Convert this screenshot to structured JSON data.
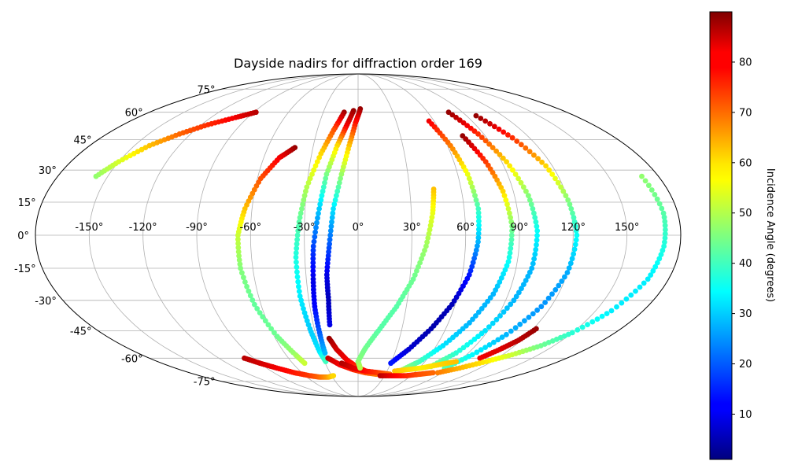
{
  "chart_data": {
    "type": "scatter",
    "projection": "mollweide",
    "title": "Dayside nadirs for diffraction order 169",
    "x_ticks": [
      "-150°",
      "-120°",
      "-90°",
      "-60°",
      "-30°",
      "0°",
      "30°",
      "60°",
      "90°",
      "120°",
      "150°"
    ],
    "y_ticks": [
      "75°",
      "60°",
      "45°",
      "30°",
      "15°",
      "0°",
      "-15°",
      "-30°",
      "-45°",
      "-60°",
      "-75°"
    ],
    "grid": true,
    "colormap": "jet",
    "colorbar": {
      "label": "Incidence Angle (degrees)",
      "range": [
        1,
        90
      ],
      "ticks": [
        "10",
        "20",
        "30",
        "40",
        "50",
        "60",
        "70",
        "80"
      ],
      "placement": "right"
    },
    "series": [
      {
        "points": [
          [
            -157,
            27,
            47
          ],
          [
            -150,
            34,
            53
          ],
          [
            -140,
            42,
            62
          ],
          [
            -128,
            48,
            70
          ],
          [
            -115,
            53,
            75
          ],
          [
            -100,
            57,
            80
          ],
          [
            -88,
            60,
            85
          ]
        ]
      },
      {
        "points": [
          [
            -98,
            -60,
            85
          ],
          [
            -90,
            -63,
            83
          ],
          [
            -80,
            -66,
            80
          ],
          [
            -68,
            -69,
            77
          ],
          [
            -55,
            -71,
            74
          ],
          [
            -45,
            -72,
            70
          ],
          [
            -35,
            -72,
            65
          ],
          [
            -28,
            -71,
            60
          ]
        ]
      },
      {
        "points": [
          [
            -42,
            41,
            88
          ],
          [
            -50,
            36,
            80
          ],
          [
            -58,
            26,
            72
          ],
          [
            -64,
            12,
            62
          ],
          [
            -67,
            0,
            52
          ],
          [
            -67,
            -15,
            46
          ],
          [
            -64,
            -32,
            43
          ],
          [
            -58,
            -48,
            44
          ],
          [
            -52,
            -58,
            48
          ],
          [
            -49,
            -63,
            52
          ]
        ]
      },
      {
        "points": [
          [
            -12,
            60,
            87
          ],
          [
            -18,
            50,
            72
          ],
          [
            -24,
            38,
            60
          ],
          [
            -30,
            22,
            50
          ],
          [
            -33,
            6,
            42
          ],
          [
            -35,
            -10,
            37
          ],
          [
            -35,
            -28,
            33
          ],
          [
            -33,
            -44,
            30
          ],
          [
            -31,
            -56,
            32
          ],
          [
            -29,
            -62,
            40
          ]
        ]
      },
      {
        "points": [
          [
            -4,
            61,
            88
          ],
          [
            -9,
            52,
            80
          ],
          [
            -14,
            42,
            60
          ],
          [
            -19,
            28,
            45
          ],
          [
            -22,
            12,
            30
          ],
          [
            -25,
            -5,
            18
          ],
          [
            -26,
            -20,
            10
          ],
          [
            -27,
            -33,
            12
          ],
          [
            -27,
            -46,
            20
          ],
          [
            -27,
            -57,
            28
          ]
        ]
      },
      {
        "points": [
          [
            2,
            62,
            88
          ],
          [
            -2,
            54,
            78
          ],
          [
            -6,
            42,
            62
          ],
          [
            -10,
            28,
            48
          ],
          [
            -14,
            12,
            32
          ],
          [
            -16,
            -4,
            20
          ],
          [
            -18,
            -18,
            10
          ],
          [
            -18,
            -30,
            6
          ],
          [
            -19,
            -42,
            10
          ]
        ]
      },
      {
        "points": [
          [
            -21,
            -49,
            88
          ],
          [
            -17,
            -55,
            83
          ],
          [
            -10,
            -61,
            80
          ],
          [
            -2,
            -65,
            76
          ],
          [
            8,
            -68,
            74
          ]
        ]
      },
      {
        "points": [
          [
            -26,
            -60,
            84
          ],
          [
            -17,
            -64,
            80
          ],
          [
            -5,
            -67,
            76
          ],
          [
            8,
            -69,
            72
          ],
          [
            20,
            -70,
            68
          ]
        ]
      },
      {
        "points": [
          [
            -15,
            -63,
            86
          ],
          [
            -5,
            -66,
            82
          ],
          [
            8,
            -68,
            78
          ],
          [
            22,
            -69,
            74
          ],
          [
            35,
            -70,
            70
          ]
        ]
      },
      {
        "points": [
          [
            44,
            21,
            62
          ],
          [
            42,
            10,
            55
          ],
          [
            38,
            -5,
            48
          ],
          [
            32,
            -20,
            44
          ],
          [
            24,
            -33,
            42
          ],
          [
            15,
            -44,
            42
          ],
          [
            6,
            -54,
            44
          ],
          [
            0,
            -62,
            46
          ],
          [
            2,
            -66,
            50
          ]
        ]
      },
      {
        "points": [
          [
            56,
            55,
            80
          ],
          [
            62,
            42,
            68
          ],
          [
            66,
            28,
            55
          ],
          [
            68,
            12,
            40
          ],
          [
            67,
            -3,
            28
          ],
          [
            64,
            -18,
            14
          ],
          [
            58,
            -32,
            6
          ],
          [
            50,
            -44,
            5
          ],
          [
            40,
            -55,
            8
          ],
          [
            30,
            -63,
            14
          ]
        ]
      },
      {
        "points": [
          [
            74,
            47,
            88
          ],
          [
            80,
            34,
            74
          ],
          [
            84,
            20,
            60
          ],
          [
            86,
            4,
            45
          ],
          [
            85,
            -12,
            35
          ],
          [
            81,
            -27,
            28
          ],
          [
            74,
            -41,
            28
          ],
          [
            65,
            -53,
            32
          ],
          [
            55,
            -62,
            40
          ],
          [
            45,
            -67,
            47
          ]
        ]
      },
      {
        "points": [
          [
            78,
            60,
            88
          ],
          [
            86,
            48,
            75
          ],
          [
            93,
            34,
            60
          ],
          [
            98,
            18,
            46
          ],
          [
            100,
            2,
            35
          ],
          [
            99,
            -15,
            28
          ],
          [
            95,
            -30,
            28
          ],
          [
            88,
            -45,
            32
          ],
          [
            80,
            -57,
            38
          ],
          [
            70,
            -65,
            45
          ]
        ]
      },
      {
        "points": [
          [
            98,
            58,
            88
          ],
          [
            108,
            46,
            75
          ],
          [
            116,
            32,
            60
          ],
          [
            120,
            16,
            46
          ],
          [
            122,
            0,
            35
          ],
          [
            120,
            -17,
            27
          ],
          [
            114,
            -33,
            25
          ],
          [
            105,
            -47,
            28
          ],
          [
            95,
            -58,
            34
          ],
          [
            85,
            -66,
            42
          ]
        ]
      },
      {
        "points": [
          [
            122,
            -44,
            88
          ],
          [
            118,
            -50,
            85
          ],
          [
            112,
            -55,
            82
          ],
          [
            105,
            -60,
            80
          ]
        ]
      },
      {
        "points": [
          [
            170,
            27,
            47
          ],
          [
            172,
            10,
            42
          ],
          [
            171,
            -5,
            37
          ],
          [
            168,
            -20,
            33
          ],
          [
            160,
            -35,
            33
          ],
          [
            150,
            -46,
            38
          ],
          [
            140,
            -53,
            44
          ],
          [
            128,
            -58,
            52
          ],
          [
            115,
            -62,
            58
          ],
          [
            100,
            -66,
            63
          ],
          [
            85,
            -69,
            68
          ]
        ]
      },
      {
        "points": [
          [
            38,
            -68,
            62
          ],
          [
            50,
            -67,
            60
          ],
          [
            62,
            -66,
            58
          ],
          [
            75,
            -64,
            60
          ],
          [
            88,
            -62,
            62
          ]
        ]
      },
      {
        "points": [
          [
            25,
            -71,
            85
          ],
          [
            40,
            -71,
            80
          ],
          [
            55,
            -71,
            76
          ],
          [
            68,
            -70,
            72
          ],
          [
            80,
            -69,
            70
          ]
        ]
      }
    ]
  }
}
